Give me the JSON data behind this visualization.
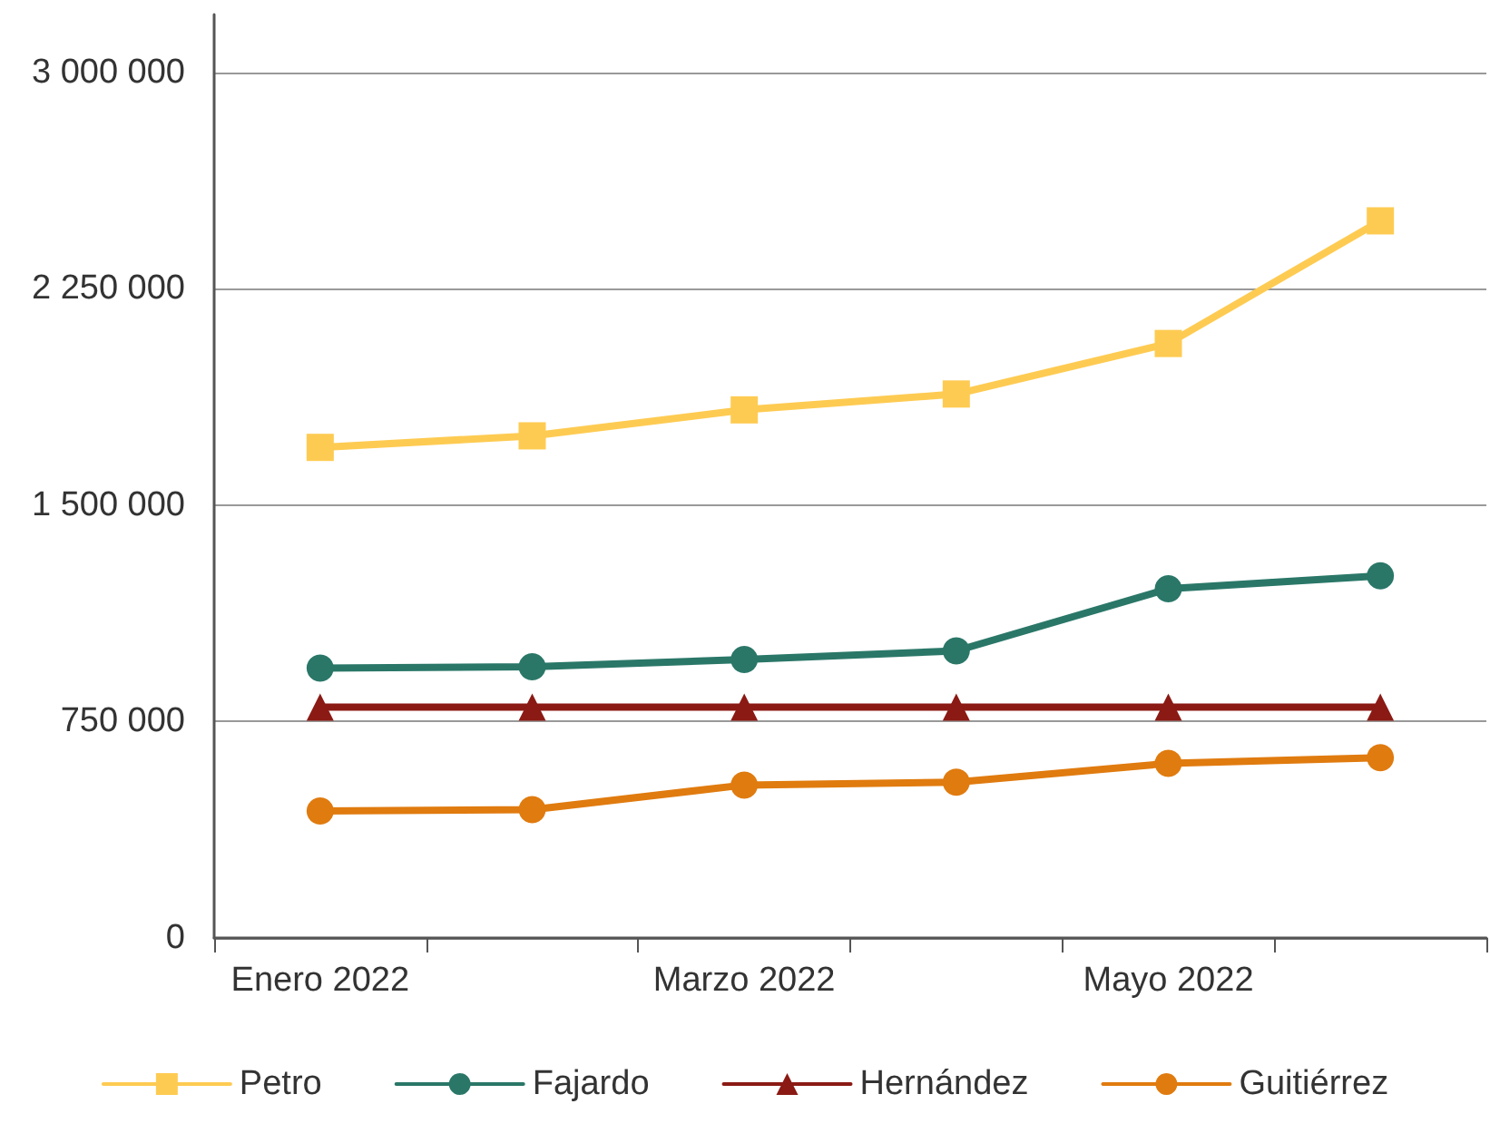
{
  "chart_data": {
    "type": "line",
    "categories": [
      "Enero 2022",
      null,
      "Marzo 2022",
      null,
      "Mayo 2022",
      null
    ],
    "series": [
      {
        "name": "Petro",
        "color": "#fecb52",
        "marker": "square",
        "values": [
          1700000,
          1740000,
          1830000,
          1885000,
          2060000,
          2485000
        ]
      },
      {
        "name": "Fajardo",
        "color": "#2a7768",
        "marker": "circle",
        "values": [
          935000,
          940000,
          965000,
          995000,
          1210000,
          1255000
        ]
      },
      {
        "name": "Hernández",
        "color": "#8b1a14",
        "marker": "triangle",
        "values": [
          800000,
          800000,
          800000,
          800000,
          800000,
          800000
        ]
      },
      {
        "name": "Guitiérrez",
        "color": "#e07b0f",
        "marker": "circle",
        "values": [
          440000,
          445000,
          530000,
          540000,
          605000,
          625000
        ]
      }
    ],
    "ylim": [
      0,
      3200000
    ],
    "yticks": [
      {
        "value": 0,
        "label": "0"
      },
      {
        "value": 750000,
        "label": "750 000"
      },
      {
        "value": 1500000,
        "label": "1 500 000"
      },
      {
        "value": 2250000,
        "label": "2 250 000"
      },
      {
        "value": 3000000,
        "label": "3 000 000"
      }
    ],
    "grid": "y",
    "legend": "bottom",
    "line_style": "solid"
  }
}
